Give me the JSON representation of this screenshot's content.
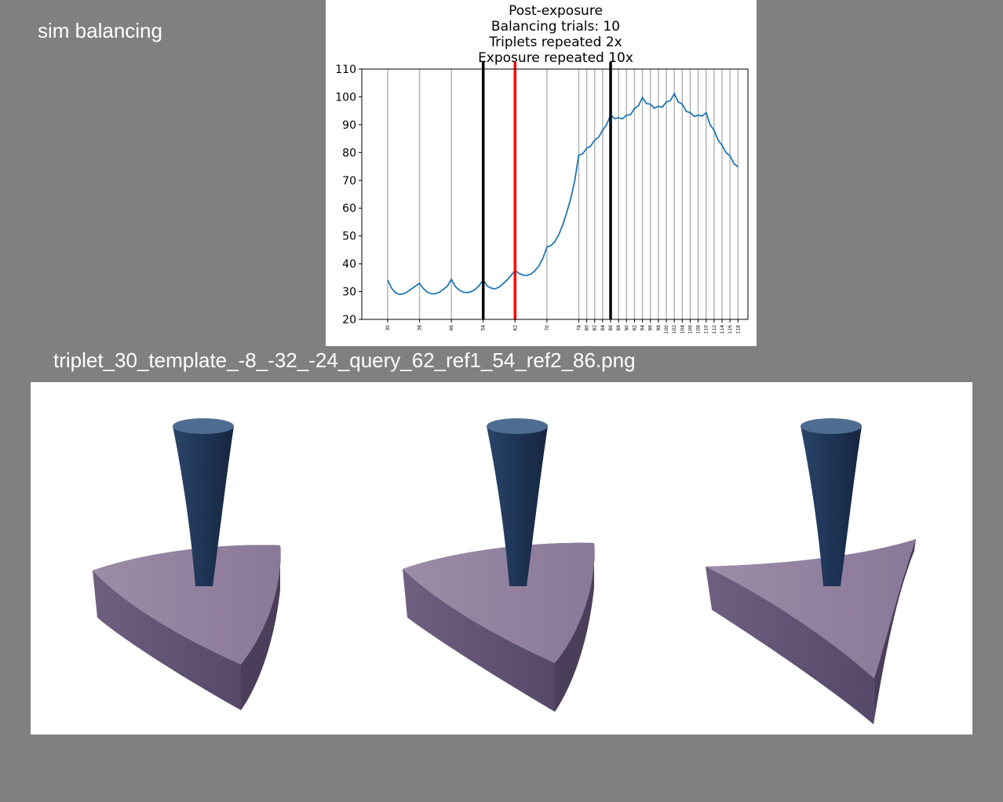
{
  "app_title": "sim balancing",
  "filename": "triplet_30_template_-8_-32_-24_query_62_ref1_54_ref2_86.png",
  "chart_data": {
    "type": "line",
    "title_lines": [
      "Post-exposure",
      "Balancing trials: 10",
      "Triplets repeated 2x",
      "Exposure repeated 10x"
    ],
    "xlabel": "",
    "ylabel": "",
    "xlim": [
      23.5,
      120.5
    ],
    "ylim": [
      20,
      110
    ],
    "y_ticks": [
      20,
      30,
      40,
      50,
      60,
      70,
      80,
      90,
      100,
      110
    ],
    "x_ticks": [
      30,
      38,
      46,
      54,
      62,
      70,
      78,
      80,
      82,
      84,
      86,
      88,
      90,
      92,
      94,
      96,
      98,
      100,
      102,
      104,
      106,
      108,
      110,
      112,
      114,
      116,
      118
    ],
    "grid_x": true,
    "grid_y": false,
    "gridline_color": "#b0b0b0",
    "line_color": "#1f77b4",
    "markers": [
      {
        "x": 54,
        "role": "ref1",
        "color": "#000000"
      },
      {
        "x": 62,
        "role": "query",
        "color": "#ff0000"
      },
      {
        "x": 86,
        "role": "ref2",
        "color": "#000000"
      }
    ],
    "series": [
      {
        "x": [
          30,
          31,
          32,
          33,
          34,
          35,
          36,
          37,
          38,
          39,
          40,
          41,
          42,
          43,
          44,
          45,
          46,
          47,
          48,
          49,
          50,
          51,
          52,
          53,
          54,
          55,
          56,
          57,
          58,
          59,
          60,
          61,
          62,
          63,
          64,
          65,
          66,
          67,
          68,
          69,
          70,
          71,
          72,
          73,
          74,
          75,
          76,
          77,
          78,
          79,
          80,
          81,
          82,
          83,
          84,
          85,
          86,
          87,
          88,
          89,
          90,
          91,
          92,
          93,
          94,
          95,
          96,
          97,
          98,
          99,
          100,
          101,
          102,
          103,
          104,
          105,
          106,
          107,
          108,
          109,
          110,
          111,
          112,
          113,
          114,
          115,
          116,
          117,
          118
        ],
        "values": [
          34.2,
          31.2,
          29.5,
          29.0,
          29.2,
          30.0,
          31.0,
          32.0,
          33.0,
          31.0,
          29.8,
          29.2,
          29.2,
          29.8,
          30.8,
          32.0,
          34.4,
          31.8,
          30.5,
          29.8,
          29.6,
          30.0,
          30.8,
          32.2,
          34.2,
          32.0,
          31.2,
          31.0,
          31.6,
          32.8,
          34.2,
          35.8,
          37.6,
          36.5,
          35.9,
          35.8,
          36.3,
          37.5,
          39.2,
          42.0,
          46.0,
          46.5,
          48.0,
          50.5,
          54.0,
          58.5,
          63.5,
          70.0,
          79.0,
          79.6,
          81.5,
          82.3,
          84.5,
          85.5,
          88.0,
          90.0,
          93.5,
          92.2,
          92.5,
          92.1,
          93.4,
          93.6,
          95.8,
          96.8,
          99.8,
          97.6,
          97.4,
          95.9,
          96.6,
          96.3,
          98.2,
          98.6,
          101.2,
          98.2,
          97.4,
          94.8,
          94.3,
          93.0,
          93.4,
          93.1,
          94.3,
          90.0,
          88.0,
          84.4,
          82.6,
          80.0,
          78.8,
          76.0,
          74.8
        ]
      }
    ]
  },
  "render_images": [
    {
      "label": "template",
      "base_color": "#9a88a6",
      "stem_color": "#2f4d73"
    },
    {
      "label": "ref1",
      "base_color": "#9a88a6",
      "stem_color": "#2f4d73"
    },
    {
      "label": "ref2",
      "base_color": "#9a88a6",
      "stem_color": "#2f4d73"
    }
  ]
}
